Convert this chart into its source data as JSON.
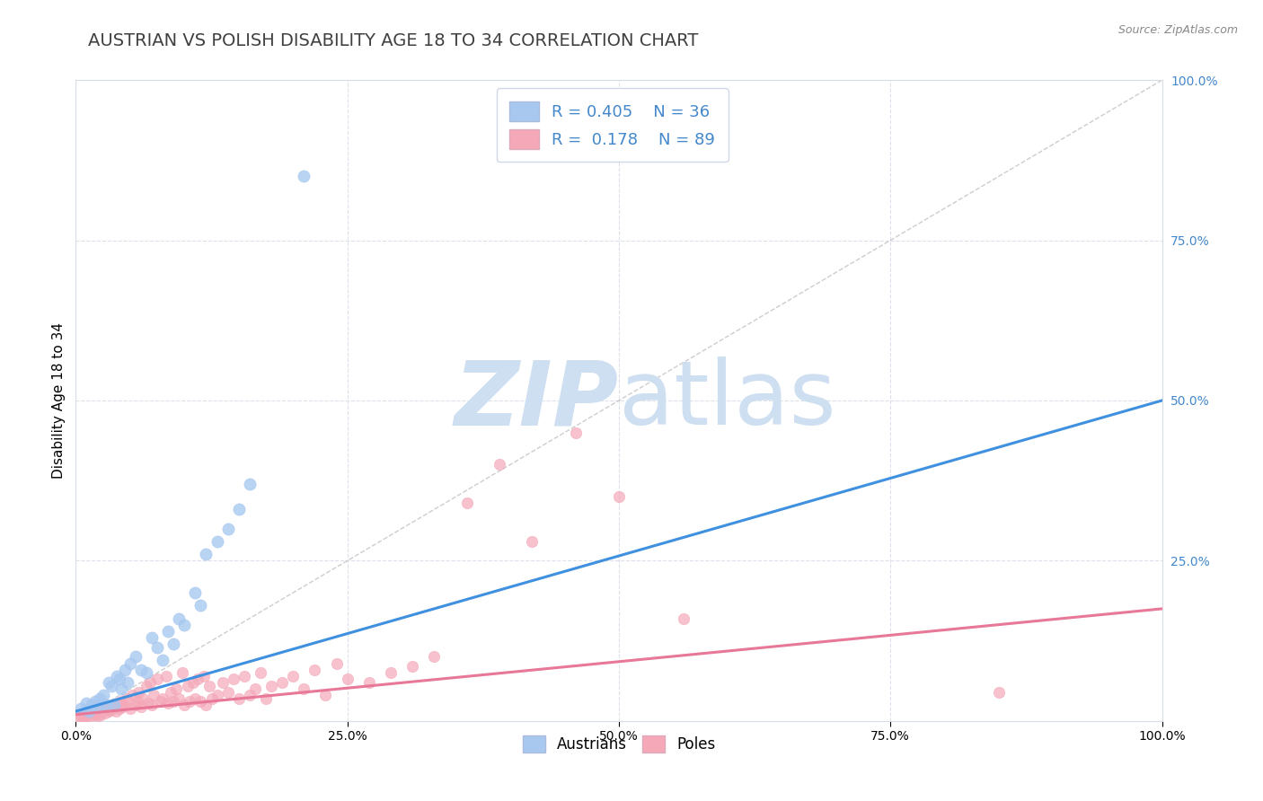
{
  "title": "AUSTRIAN VS POLISH DISABILITY AGE 18 TO 34 CORRELATION CHART",
  "source_text": "Source: ZipAtlas.com",
  "xlabel": "",
  "ylabel": "Disability Age 18 to 34",
  "xlim": [
    0,
    1.0
  ],
  "ylim": [
    0,
    1.0
  ],
  "xtick_labels": [
    "0.0%",
    "25.0%",
    "50.0%",
    "75.0%",
    "100.0%"
  ],
  "xtick_vals": [
    0.0,
    0.25,
    0.5,
    0.75,
    1.0
  ],
  "ytick_labels": [
    "100.0%",
    "75.0%",
    "50.0%",
    "25.0%"
  ],
  "ytick_vals": [
    1.0,
    0.75,
    0.5,
    0.25
  ],
  "legend_r_austrians": "0.405",
  "legend_n_austrians": "36",
  "legend_r_poles": "0.178",
  "legend_n_poles": "89",
  "austrian_color": "#a8c8f0",
  "polish_color": "#f4a8b8",
  "trend_austrian_color": "#4090e0",
  "trend_polish_color": "#e87898",
  "diagonal_color": "#b8b8b8",
  "watermark_color": "#cddff0",
  "title_color": "#404040",
  "title_fontsize": 14,
  "axis_label_fontsize": 11,
  "legend_fontsize": 13,
  "austrians_scatter_x": [
    0.005,
    0.01,
    0.012,
    0.015,
    0.018,
    0.02,
    0.022,
    0.025,
    0.028,
    0.03,
    0.033,
    0.035,
    0.038,
    0.04,
    0.042,
    0.045,
    0.048,
    0.05,
    0.055,
    0.06,
    0.065,
    0.07,
    0.075,
    0.08,
    0.085,
    0.09,
    0.095,
    0.1,
    0.11,
    0.115,
    0.12,
    0.13,
    0.14,
    0.15,
    0.16,
    0.21
  ],
  "austrians_scatter_y": [
    0.02,
    0.028,
    0.015,
    0.025,
    0.03,
    0.022,
    0.035,
    0.04,
    0.025,
    0.06,
    0.055,
    0.025,
    0.07,
    0.065,
    0.05,
    0.08,
    0.06,
    0.09,
    0.1,
    0.08,
    0.075,
    0.13,
    0.115,
    0.095,
    0.14,
    0.12,
    0.16,
    0.15,
    0.2,
    0.18,
    0.26,
    0.28,
    0.3,
    0.33,
    0.37,
    0.85
  ],
  "poles_scatter_x": [
    0.003,
    0.005,
    0.007,
    0.008,
    0.01,
    0.012,
    0.013,
    0.015,
    0.017,
    0.018,
    0.02,
    0.022,
    0.023,
    0.025,
    0.027,
    0.028,
    0.03,
    0.032,
    0.033,
    0.035,
    0.037,
    0.038,
    0.04,
    0.042,
    0.043,
    0.045,
    0.047,
    0.05,
    0.052,
    0.055,
    0.057,
    0.058,
    0.06,
    0.062,
    0.065,
    0.067,
    0.068,
    0.07,
    0.072,
    0.075,
    0.078,
    0.08,
    0.083,
    0.085,
    0.087,
    0.09,
    0.092,
    0.095,
    0.098,
    0.1,
    0.103,
    0.105,
    0.108,
    0.11,
    0.112,
    0.115,
    0.118,
    0.12,
    0.123,
    0.125,
    0.13,
    0.135,
    0.14,
    0.145,
    0.15,
    0.155,
    0.16,
    0.165,
    0.17,
    0.175,
    0.18,
    0.19,
    0.2,
    0.21,
    0.22,
    0.23,
    0.24,
    0.25,
    0.27,
    0.29,
    0.31,
    0.33,
    0.36,
    0.39,
    0.42,
    0.46,
    0.5,
    0.56,
    0.85
  ],
  "poles_scatter_y": [
    0.005,
    0.008,
    0.006,
    0.01,
    0.008,
    0.012,
    0.007,
    0.015,
    0.01,
    0.013,
    0.008,
    0.015,
    0.01,
    0.018,
    0.012,
    0.02,
    0.015,
    0.022,
    0.018,
    0.025,
    0.015,
    0.028,
    0.02,
    0.03,
    0.022,
    0.025,
    0.035,
    0.02,
    0.04,
    0.025,
    0.03,
    0.045,
    0.022,
    0.035,
    0.055,
    0.028,
    0.06,
    0.025,
    0.04,
    0.065,
    0.03,
    0.035,
    0.07,
    0.028,
    0.045,
    0.03,
    0.05,
    0.035,
    0.075,
    0.025,
    0.055,
    0.03,
    0.06,
    0.035,
    0.065,
    0.03,
    0.07,
    0.025,
    0.055,
    0.035,
    0.04,
    0.06,
    0.045,
    0.065,
    0.035,
    0.07,
    0.04,
    0.05,
    0.075,
    0.035,
    0.055,
    0.06,
    0.07,
    0.05,
    0.08,
    0.04,
    0.09,
    0.065,
    0.06,
    0.075,
    0.085,
    0.1,
    0.34,
    0.4,
    0.28,
    0.45,
    0.35,
    0.16,
    0.045
  ],
  "trend_austrian_x0": 0.0,
  "trend_austrian_y0": 0.015,
  "trend_austrian_x1": 1.0,
  "trend_austrian_y1": 0.5,
  "trend_polish_x0": 0.0,
  "trend_polish_y0": 0.01,
  "trend_polish_x1": 1.0,
  "trend_polish_y1": 0.175
}
